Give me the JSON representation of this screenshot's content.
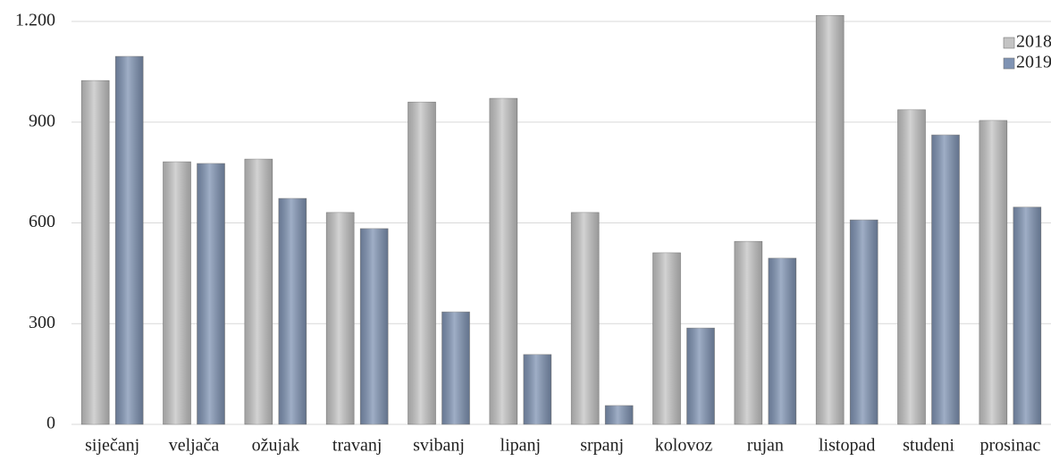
{
  "chart_data": {
    "type": "bar",
    "categories": [
      "siječanj",
      "veljača",
      "ožujak",
      "travanj",
      "svibanj",
      "lipanj",
      "srpanj",
      "kolovoz",
      "rujan",
      "listopad",
      "studeni",
      "prosinac"
    ],
    "series": [
      {
        "name": "2018",
        "color": "#c4c4c4",
        "values": [
          1024,
          782,
          790,
          631,
          960,
          971,
          631,
          511,
          545,
          1218,
          937,
          905
        ]
      },
      {
        "name": "2019",
        "color": "#7f93b3",
        "values": [
          1096,
          777,
          673,
          583,
          335,
          208,
          56,
          287,
          495,
          609,
          862,
          647
        ]
      }
    ],
    "ylim": [
      0,
      1200
    ],
    "yticks": [
      0,
      300,
      600,
      900,
      {
        "value": 1200,
        "label": "1.200"
      }
    ],
    "grid": true,
    "legend": "top-right"
  }
}
